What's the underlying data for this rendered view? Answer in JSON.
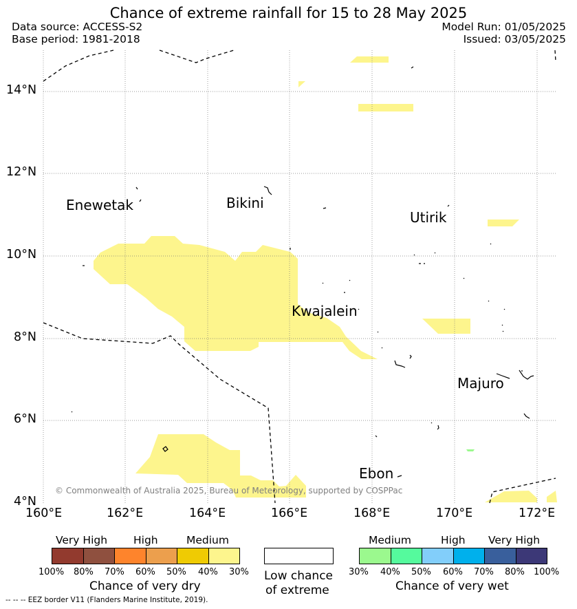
{
  "header": {
    "title": "Chance of extreme rainfall for 15 to 28 May 2025",
    "data_source": "Data source: ACCESS-S2",
    "base_period": "Base period: 1981-2018",
    "model_run": "Model Run: 01/05/2025",
    "issued": "Issued: 03/05/2025"
  },
  "map": {
    "lat_labels": [
      "14°N",
      "12°N",
      "10°N",
      "8°N",
      "6°N",
      "4°N"
    ],
    "lon_labels": [
      "160°E",
      "162°E",
      "164°E",
      "166°E",
      "168°E",
      "170°E",
      "172°E"
    ],
    "places": {
      "enewetak": "Enewetak",
      "bikini": "Bikini",
      "utirik": "Utirik",
      "kwajalein": "Kwajalein",
      "majuro": "Majuro",
      "ebon": "Ebon"
    },
    "copyright": "© Commonwealth of Australia 2025, Bureau of Meteorology, supported by COSPPac",
    "colors": {
      "medium_dry": "#fdf58d",
      "medium_wet": "#9bf98e",
      "land": "#000000"
    }
  },
  "legend": {
    "dry": {
      "levels": [
        "Very High",
        "High",
        "Medium"
      ],
      "ticks": [
        "100%",
        "80%",
        "70%",
        "60%",
        "50%",
        "40%",
        "30%"
      ],
      "colors": [
        "#923a2e",
        "#8f503f",
        "#fe842c",
        "#ec9f4d",
        "#efcb03",
        "#fdf58d"
      ],
      "title": "Chance of very dry"
    },
    "low": {
      "line1": "Low chance",
      "line2": "of extreme"
    },
    "wet": {
      "levels": [
        "Medium",
        "High",
        "Very High"
      ],
      "ticks": [
        "30%",
        "40%",
        "50%",
        "60%",
        "70%",
        "80%",
        "100%"
      ],
      "colors": [
        "#9bf98e",
        "#55fa9d",
        "#82cefa",
        "#00b0ec",
        "#395f9c",
        "#3c3877"
      ],
      "title": "Chance of very wet"
    }
  },
  "footer": {
    "eez_note": "--  --  -- EEZ border V11 (Flanders Marine Institute, 2019)."
  }
}
